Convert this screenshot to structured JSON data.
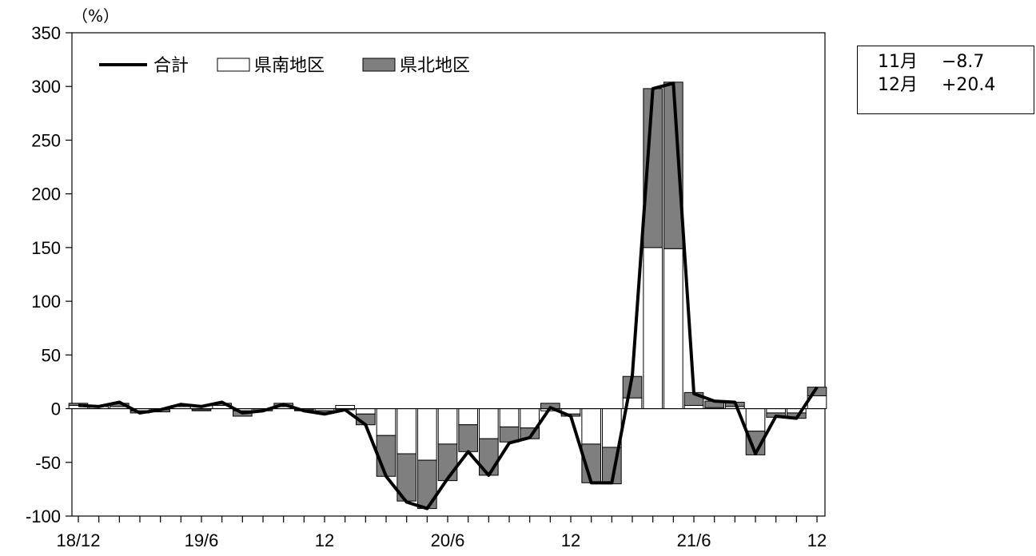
{
  "chart_data": {
    "type": "bar",
    "stacked": true,
    "unit": "（%）",
    "ylim": [
      -100,
      350
    ],
    "yticks": [
      350,
      300,
      250,
      200,
      150,
      100,
      50,
      0,
      -50,
      -100
    ],
    "x_tick_labels": [
      "18/12",
      "19/6",
      "12",
      "20/6",
      "12",
      "21/6",
      "12"
    ],
    "periods": 37,
    "legend": [
      "合計",
      "県南地区",
      "県北地区"
    ],
    "legend_position": "top-left",
    "grid": false,
    "series": [
      {
        "name": "県南地区",
        "type": "bar",
        "color": "#ffffff",
        "values": [
          3,
          2,
          2,
          -2,
          -1,
          2,
          -1,
          3,
          -2,
          0,
          2,
          -1,
          -2,
          3,
          -5,
          -25,
          -42,
          -48,
          -33,
          -15,
          -28,
          -17,
          -18,
          -2,
          -5,
          -33,
          -36,
          10,
          150,
          149,
          3,
          1,
          2,
          -21,
          -4,
          -4,
          12
        ]
      },
      {
        "name": "県北地区",
        "type": "bar",
        "color": "#7f7f7f",
        "values": [
          2,
          1,
          3,
          -2,
          -2,
          1,
          -1,
          2,
          -5,
          -2,
          3,
          -1,
          -2,
          -1,
          -10,
          -38,
          -44,
          -45,
          -34,
          -25,
          -34,
          -14,
          -10,
          5,
          -2,
          -36,
          -34,
          20,
          148,
          155,
          12,
          6,
          4,
          -22,
          -4,
          -5,
          8
        ]
      },
      {
        "name": "合計",
        "type": "line",
        "color": "#000000",
        "values": [
          3,
          2,
          6,
          -4,
          -1,
          4,
          2,
          6,
          -4,
          -2,
          4,
          -2,
          -5,
          -1,
          -15,
          -63,
          -87,
          -93,
          -65,
          -40,
          -62,
          -32,
          -27,
          1,
          -7,
          -69,
          -69,
          31,
          298,
          303,
          14,
          7,
          6,
          -42,
          -7,
          -9,
          20
        ]
      }
    ]
  },
  "note": {
    "rows": [
      {
        "month": "11月",
        "value": "−8.7"
      },
      {
        "month": "12月",
        "value": "+20.4"
      }
    ]
  }
}
